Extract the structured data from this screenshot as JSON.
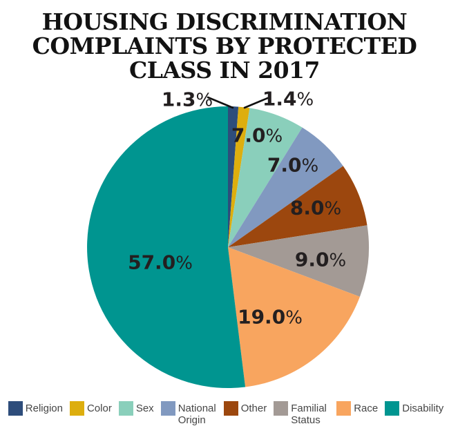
{
  "chart_data": {
    "type": "pie",
    "title": "HOUSING DISCRIMINATION COMPLAINTS BY PROTECTED CLASS IN 2017",
    "title_lines": [
      "HOUSING DISCRIMINATION",
      "COMPLAINTS BY PROTECTED",
      "CLASS IN 2017"
    ],
    "categories": [
      "Religion",
      "Color",
      "Sex",
      "National Origin",
      "Other",
      "Familial Status",
      "Race",
      "Disability"
    ],
    "values": [
      1.3,
      1.4,
      7.0,
      7.0,
      8.0,
      9.0,
      19.0,
      57.0
    ],
    "labels": [
      "1.3%",
      "1.4%",
      "7.0%",
      "7.0%",
      "8.0%",
      "9.0%",
      "19.0%",
      "57.0%"
    ],
    "colors": [
      "#2e4d7b",
      "#ddae0e",
      "#8acfbb",
      "#8199c0",
      "#9c470e",
      "#a39a95",
      "#f8a55f",
      "#009590"
    ],
    "direction": "clockwise",
    "start_angle_deg": 0,
    "legend_position": "bottom",
    "label_color": "#231f20",
    "legend_text_color": "#454545",
    "leader_line_color": "#111111"
  }
}
